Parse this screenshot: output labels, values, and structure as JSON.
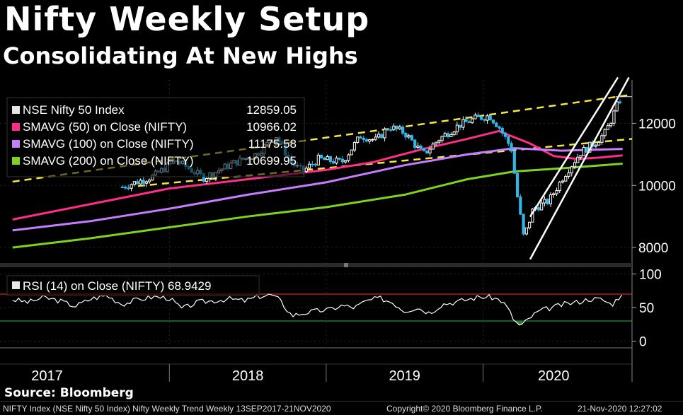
{
  "title": "Nifty Weekly Setup",
  "subtitle": "Consolidating At New Highs",
  "source": "Source: Bloomberg",
  "footer": {
    "left": "NIFTY Index (NSE Nifty 50 Index) Nifty Weekly Trend  Weekly 13SEP2017-21NOV2020",
    "center": "Copyright© 2020 Bloomberg Finance L.P.",
    "right": "21-Nov-2020 12:27:02"
  },
  "colors": {
    "background": "#000000",
    "candle_up": "#ffffff",
    "candle_down": "#33b5e5",
    "sma50": "#ff2d8a",
    "sma100": "#c77dff",
    "sma200": "#7ed321",
    "channel": "#f5e642",
    "trendline": "#ffffff",
    "rsi_line": "#ffffff",
    "rsi_upper": "#ff3030",
    "rsi_lower": "#00cc33",
    "rsi_oversold_fill": "#2e7d32"
  },
  "chart_data": [
    {
      "type": "candlestick",
      "title": "NSE Nifty 50 Index",
      "frequency": "Weekly",
      "x_axis": {
        "tick_labels": [
          "2017",
          "2018",
          "2019",
          "2020"
        ]
      },
      "y_axis": {
        "tick_labels": [
          "12000",
          "10000",
          "8000"
        ],
        "ylim": [
          7500,
          13400
        ],
        "position": "right"
      },
      "legend": [
        {
          "name": "NSE Nifty 50 Index",
          "value": "12859.05",
          "color": "#e6e6e6"
        },
        {
          "name": "SMAVG (50)  on Close (NIFTY)",
          "value": "10966.02",
          "color": "#ff2d8a"
        },
        {
          "name": "SMAVG (100)  on Close (NIFTY)",
          "value": "11175.58",
          "color": "#c77dff"
        },
        {
          "name": "SMAVG (200)  on Close (NIFTY)",
          "value": "10699.95",
          "color": "#7ed321"
        }
      ],
      "close_series": {
        "x": [
          2017.7,
          2017.9,
          2018.04,
          2018.22,
          2018.4,
          2018.55,
          2018.68,
          2018.78,
          2018.85,
          2018.95,
          2019.1,
          2019.22,
          2019.32,
          2019.4,
          2019.5,
          2019.62,
          2019.72,
          2019.85,
          2019.95,
          2020.04,
          2020.1,
          2020.18,
          2020.22,
          2020.26,
          2020.32,
          2020.42,
          2020.52,
          2020.62,
          2020.72,
          2020.78,
          2020.82,
          2020.86,
          2020.89
        ],
        "y": [
          9950,
          10300,
          10800,
          10250,
          10700,
          11000,
          11600,
          10700,
          10450,
          10850,
          10750,
          11600,
          11450,
          11900,
          11700,
          11000,
          11500,
          11950,
          12150,
          12250,
          11900,
          11200,
          9600,
          8300,
          9250,
          9500,
          10350,
          11050,
          11400,
          11700,
          12150,
          12650,
          12859.05
        ]
      },
      "sma_series": [
        {
          "name": "SMAVG (50)",
          "x": [
            2017.0,
            2017.5,
            2018.0,
            2018.5,
            2019.0,
            2019.3,
            2019.6,
            2019.9,
            2020.1,
            2020.3,
            2020.45,
            2020.6,
            2020.75,
            2020.89
          ],
          "y": [
            8900,
            9400,
            9900,
            10200,
            10500,
            10750,
            11150,
            11500,
            11750,
            11350,
            10950,
            10850,
            10900,
            10966.02
          ]
        },
        {
          "name": "SMAVG (100)",
          "x": [
            2017.0,
            2017.5,
            2018.0,
            2018.5,
            2019.0,
            2019.5,
            2019.9,
            2020.2,
            2020.5,
            2020.89
          ],
          "y": [
            8550,
            8850,
            9250,
            9700,
            10100,
            10650,
            11000,
            11200,
            11120,
            11175.58
          ]
        },
        {
          "name": "SMAVG (200)",
          "x": [
            2017.0,
            2017.5,
            2018.0,
            2018.5,
            2019.0,
            2019.5,
            2019.9,
            2020.2,
            2020.5,
            2020.89
          ],
          "y": [
            8000,
            8300,
            8650,
            9000,
            9300,
            9700,
            10200,
            10450,
            10550,
            10699.95
          ]
        }
      ],
      "channel_lines": [
        {
          "x": [
            2017.0,
            2020.95
          ],
          "y": [
            10120,
            12925
          ]
        },
        {
          "x": [
            2017.8,
            2020.95
          ],
          "y": [
            9980,
            11500
          ]
        }
      ],
      "trend_lines": [
        {
          "x": [
            2020.3,
            2020.93
          ],
          "y": [
            7620,
            13480
          ]
        },
        {
          "x": [
            2020.3,
            2020.86
          ],
          "y": [
            8990,
            13480
          ]
        }
      ]
    },
    {
      "type": "line",
      "title": "RSI (14)  on Close (NIFTY)",
      "value": "68.9429",
      "y_axis": {
        "tick_labels": [
          "100",
          "50",
          "0"
        ],
        "ylim": [
          -10,
          110
        ]
      },
      "upper_level": 70,
      "lower_level": 30,
      "x": [
        2017.0,
        2017.1,
        2017.2,
        2017.3,
        2017.4,
        2017.5,
        2017.6,
        2017.7,
        2017.8,
        2017.9,
        2018.0,
        2018.08,
        2018.18,
        2018.28,
        2018.38,
        2018.48,
        2018.58,
        2018.65,
        2018.7,
        2018.78,
        2018.86,
        2018.94,
        2019.02,
        2019.1,
        2019.18,
        2019.26,
        2019.34,
        2019.42,
        2019.5,
        2019.58,
        2019.66,
        2019.74,
        2019.82,
        2019.9,
        2019.98,
        2020.06,
        2020.12,
        2020.16,
        2020.2,
        2020.24,
        2020.3,
        2020.36,
        2020.44,
        2020.52,
        2020.6,
        2020.68,
        2020.76,
        2020.82,
        2020.86,
        2020.89
      ],
      "y": [
        62,
        58,
        65,
        60,
        52,
        63,
        68,
        55,
        62,
        66,
        64,
        48,
        58,
        60,
        63,
        60,
        67,
        69,
        62,
        38,
        42,
        45,
        47,
        53,
        50,
        60,
        64,
        58,
        45,
        50,
        42,
        55,
        58,
        62,
        66,
        65,
        60,
        48,
        30,
        22,
        35,
        45,
        50,
        55,
        58,
        63,
        62,
        54,
        64,
        68.9429
      ]
    }
  ]
}
